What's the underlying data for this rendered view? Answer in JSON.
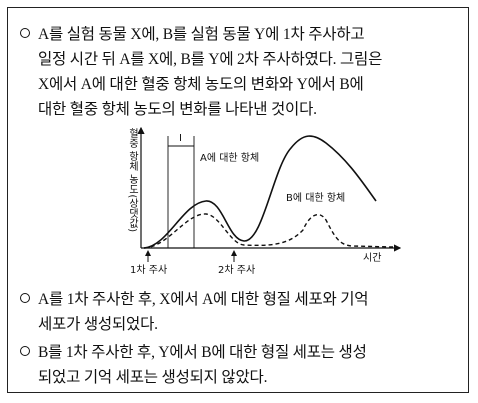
{
  "intro": {
    "lines": [
      "A를 실험 동물 X에, B를 실험 동물 Y에 1차 주사하고",
      "일정 시간 뒤 A를 X에, B를 Y에 2차 주사하였다. 그림은",
      "X에서 A에 대한 혈중 항체 농도의 변화와 Y에서 B에",
      "대한 혈중 항체 농도의 변화를 나타낸 것이다."
    ]
  },
  "figure": {
    "y_axis_label": "혈중 항체 농도(상댓값)",
    "x_axis_label": "시간",
    "first_injection": "1차 주사",
    "second_injection": "2차 주사",
    "curve_a_label": "A에 대한 항체",
    "curve_b_label": "B에 대한 항체",
    "interval_label": "Ⅰ"
  },
  "statements": [
    {
      "lines": [
        "A를 1차 주사한 후, X에서 A에 대한 형질 세포와 기억",
        "세포가 생성되었다."
      ]
    },
    {
      "lines": [
        "B를 1차 주사한 후, Y에서 B에 대한 형질 세포는 생성",
        "되었고 기억 세포는 생성되지 않았다."
      ]
    }
  ]
}
